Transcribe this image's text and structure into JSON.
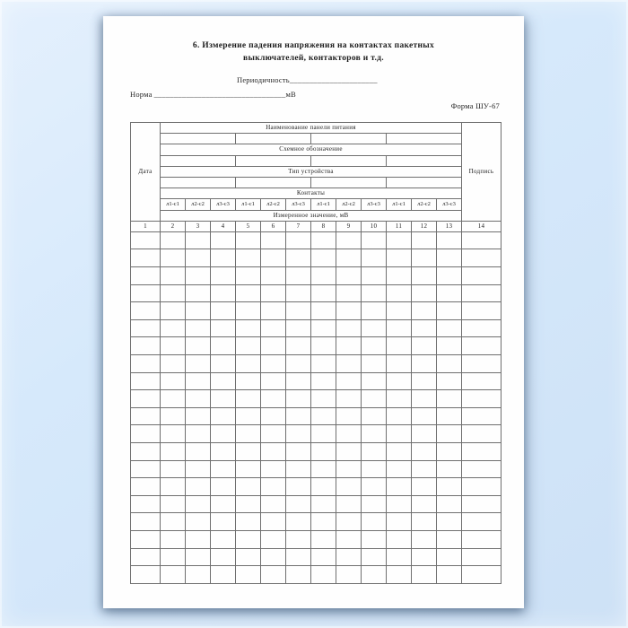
{
  "colors": {
    "background_top": "#e4f0fd",
    "background_mid": "#d6e9fb",
    "background_bottom": "#cde1f6",
    "page": "#fefefe",
    "grid_border": "#6f6f6f",
    "text": "#262626"
  },
  "header": {
    "title_line1": "6. Измерение падения напряжения на контактах пакетных",
    "title_line2": "выключателей, контакторов и т.д.",
    "periodicity_label": "Периодичность",
    "periodicity_blank": "______________________",
    "norm_label": "Норма",
    "norm_blank": "_________________________________",
    "norm_unit": "мВ",
    "form_code": "Форма ШУ-67"
  },
  "table": {
    "date_header": "Дата",
    "signature_header": "Подпись",
    "section_headers": [
      "Наименование панели питания",
      "Схемное обозначение",
      "Тип устройства",
      "Контакты"
    ],
    "contact_labels": [
      "л1-с1",
      "л2-с2",
      "л3-с3",
      "л1-с1",
      "л2-с2",
      "л3-с3",
      "л1-с1",
      "л2-с2",
      "л3-с3",
      "л1-с1",
      "л2-с2",
      "л3-с3"
    ],
    "measured_header": "Измеренное значение, мВ",
    "column_numbers": [
      "1",
      "2",
      "3",
      "4",
      "5",
      "6",
      "7",
      "8",
      "9",
      "10",
      "11",
      "12",
      "13",
      "14"
    ],
    "group_blank_cells": 4,
    "body_row_count": 20
  }
}
